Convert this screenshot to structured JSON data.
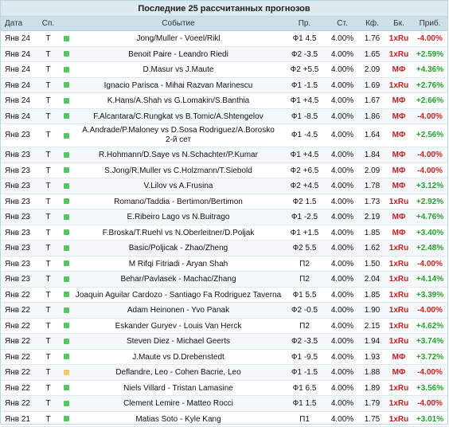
{
  "title": "Последние 25 рассчитанных прогнозов",
  "columns": {
    "date": "Дата",
    "sport": "Сп.",
    "event": "Событие",
    "pick": "Пр.",
    "stake": "Ст.",
    "odds": "Кф.",
    "bookmaker": "Бк.",
    "profit": "Приб."
  },
  "colors": {
    "positive": "#24a12d",
    "negative": "#d01e1e",
    "status_green": "#55c562",
    "status_yellow": "#f3ca6a",
    "bookmaker": "#c02020"
  },
  "rows": [
    {
      "date": "Янв 24",
      "sport": "T",
      "status": "green",
      "event": "Jong/Muller - Voeel/Rikl",
      "event2": "",
      "pick": "Ф1 4.5",
      "stake": "4.00%",
      "odds": "1.76",
      "bookmaker": "1xRu",
      "profit": "-4.00%",
      "sign": "neg"
    },
    {
      "date": "Янв 24",
      "sport": "T",
      "status": "green",
      "event": "Benoit Paire - Leandro Riedi",
      "event2": "",
      "pick": "Ф2 -3.5",
      "stake": "4.00%",
      "odds": "1.65",
      "bookmaker": "1xRu",
      "profit": "+2.59%",
      "sign": "pos"
    },
    {
      "date": "Янв 24",
      "sport": "T",
      "status": "green",
      "event": "D.Masur vs J.Maute",
      "event2": "",
      "pick": "Ф2 +5.5",
      "stake": "4.00%",
      "odds": "2.09",
      "bookmaker": "МФ",
      "profit": "+4.36%",
      "sign": "pos"
    },
    {
      "date": "Янв 24",
      "sport": "T",
      "status": "green",
      "event": "Ignacio Parisca - Mihai Razvan Marinescu",
      "event2": "",
      "pick": "Ф1 -1.5",
      "stake": "4.00%",
      "odds": "1.69",
      "bookmaker": "1xRu",
      "profit": "+2.76%",
      "sign": "pos"
    },
    {
      "date": "Янв 24",
      "sport": "T",
      "status": "green",
      "event": "K.Hans/A.Shah vs G.Lomakin/S.Banthia",
      "event2": "",
      "pick": "Ф1 +4.5",
      "stake": "4.00%",
      "odds": "1.67",
      "bookmaker": "МФ",
      "profit": "+2.66%",
      "sign": "pos"
    },
    {
      "date": "Янв 24",
      "sport": "T",
      "status": "green",
      "event": "F.Alcantara/C.Rungkat vs B.Tomic/A.Shtengelov",
      "event2": "",
      "pick": "Ф1 -8.5",
      "stake": "4.00%",
      "odds": "1.86",
      "bookmaker": "МФ",
      "profit": "-4.00%",
      "sign": "neg"
    },
    {
      "date": "Янв 23",
      "sport": "T",
      "status": "green",
      "event": "A.Andrade/P.Maloney vs D.Sosa Rodriguez/A.Borosko",
      "event2": "2-й сет",
      "pick": "Ф1 -4.5",
      "stake": "4.00%",
      "odds": "1.64",
      "bookmaker": "МФ",
      "profit": "+2.56%",
      "sign": "pos"
    },
    {
      "date": "Янв 23",
      "sport": "T",
      "status": "green",
      "event": "R.Hohmann/D.Saye vs N.Schachter/P.Kumar",
      "event2": "",
      "pick": "Ф1 +4.5",
      "stake": "4.00%",
      "odds": "1.84",
      "bookmaker": "МФ",
      "profit": "-4.00%",
      "sign": "neg"
    },
    {
      "date": "Янв 23",
      "sport": "T",
      "status": "green",
      "event": "S.Jong/R.Muller vs C.Holzmann/T.Siebold",
      "event2": "",
      "pick": "Ф2 +6.5",
      "stake": "4.00%",
      "odds": "2.09",
      "bookmaker": "МФ",
      "profit": "-4.00%",
      "sign": "neg"
    },
    {
      "date": "Янв 23",
      "sport": "T",
      "status": "green",
      "event": "V.Lilov vs A.Frusina",
      "event2": "",
      "pick": "Ф2 +4.5",
      "stake": "4.00%",
      "odds": "1.78",
      "bookmaker": "МФ",
      "profit": "+3.12%",
      "sign": "pos"
    },
    {
      "date": "Янв 23",
      "sport": "T",
      "status": "green",
      "event": "Romano/Taddia - Bertimon/Bertimon",
      "event2": "",
      "pick": "Ф2 1.5",
      "stake": "4.00%",
      "odds": "1.73",
      "bookmaker": "1xRu",
      "profit": "+2.92%",
      "sign": "pos"
    },
    {
      "date": "Янв 23",
      "sport": "T",
      "status": "green",
      "event": "E.Ribeiro Lago vs N.Buitrago",
      "event2": "",
      "pick": "Ф1 -2.5",
      "stake": "4.00%",
      "odds": "2.19",
      "bookmaker": "МФ",
      "profit": "+4.76%",
      "sign": "pos"
    },
    {
      "date": "Янв 23",
      "sport": "T",
      "status": "green",
      "event": "F.Broska/T.Ruehl vs N.Oberleitner/D.Poljak",
      "event2": "",
      "pick": "Ф1 +1.5",
      "stake": "4.00%",
      "odds": "1.85",
      "bookmaker": "МФ",
      "profit": "+3.40%",
      "sign": "pos"
    },
    {
      "date": "Янв 23",
      "sport": "T",
      "status": "green",
      "event": "Basic/Poljicak - Zhao/Zheng",
      "event2": "",
      "pick": "Ф2 5.5",
      "stake": "4.00%",
      "odds": "1.62",
      "bookmaker": "1xRu",
      "profit": "+2.48%",
      "sign": "pos"
    },
    {
      "date": "Янв 23",
      "sport": "T",
      "status": "green",
      "event": "M Rifqi Fitriadi - Aryan Shah",
      "event2": "",
      "pick": "П2",
      "stake": "4.00%",
      "odds": "1.50",
      "bookmaker": "1xRu",
      "profit": "-4.00%",
      "sign": "neg"
    },
    {
      "date": "Янв 23",
      "sport": "T",
      "status": "green",
      "event": "Behar/Pavlasek - Machac/Zhang",
      "event2": "",
      "pick": "П2",
      "stake": "4.00%",
      "odds": "2.04",
      "bookmaker": "1xRu",
      "profit": "+4.14%",
      "sign": "pos"
    },
    {
      "date": "Янв 22",
      "sport": "T",
      "status": "green",
      "event": "Joaquin Aguilar Cardozo - Santiago Fa Rodriguez Taverna",
      "event2": "",
      "pick": "Ф1 5.5",
      "stake": "4.00%",
      "odds": "1.85",
      "bookmaker": "1xRu",
      "profit": "+3.39%",
      "sign": "pos"
    },
    {
      "date": "Янв 22",
      "sport": "T",
      "status": "green",
      "event": "Adam Heinonen - Yvo Panak",
      "event2": "",
      "pick": "Ф2 -0.5",
      "stake": "4.00%",
      "odds": "1.90",
      "bookmaker": "1xRu",
      "profit": "-4.00%",
      "sign": "neg"
    },
    {
      "date": "Янв 22",
      "sport": "T",
      "status": "green",
      "event": "Eskander Guryev - Louis Van Herck",
      "event2": "",
      "pick": "П2",
      "stake": "4.00%",
      "odds": "2.15",
      "bookmaker": "1xRu",
      "profit": "+4.62%",
      "sign": "pos"
    },
    {
      "date": "Янв 22",
      "sport": "T",
      "status": "green",
      "event": "Steven Diez - Michael Geerts",
      "event2": "",
      "pick": "Ф2 -3.5",
      "stake": "4.00%",
      "odds": "1.94",
      "bookmaker": "1xRu",
      "profit": "+3.74%",
      "sign": "pos"
    },
    {
      "date": "Янв 22",
      "sport": "T",
      "status": "green",
      "event": "J.Maute vs D.Drebenstedt",
      "event2": "",
      "pick": "Ф1 -9.5",
      "stake": "4.00%",
      "odds": "1.93",
      "bookmaker": "МФ",
      "profit": "+3.72%",
      "sign": "pos"
    },
    {
      "date": "Янв 22",
      "sport": "T",
      "status": "yellow",
      "event": "Deflandre, Leo - Cohen Bacrie, Leo",
      "event2": "",
      "pick": "Ф1 -1.5",
      "stake": "4.00%",
      "odds": "1.88",
      "bookmaker": "МФ",
      "profit": "-4.00%",
      "sign": "neg"
    },
    {
      "date": "Янв 22",
      "sport": "T",
      "status": "green",
      "event": "Niels Villard - Tristan Lamasine",
      "event2": "",
      "pick": "Ф1 6.5",
      "stake": "4.00%",
      "odds": "1.89",
      "bookmaker": "1xRu",
      "profit": "+3.56%",
      "sign": "pos"
    },
    {
      "date": "Янв 22",
      "sport": "T",
      "status": "green",
      "event": "Clement Lemire - Matteo Rocci",
      "event2": "",
      "pick": "Ф1 1.5",
      "stake": "4.00%",
      "odds": "1.79",
      "bookmaker": "1xRu",
      "profit": "-4.00%",
      "sign": "neg"
    },
    {
      "date": "Янв 21",
      "sport": "T",
      "status": "green",
      "event": "Matias Soto - Kyle Kang",
      "event2": "",
      "pick": "П1",
      "stake": "4.00%",
      "odds": "1.75",
      "bookmaker": "1xRu",
      "profit": "+3.01%",
      "sign": "pos"
    }
  ]
}
